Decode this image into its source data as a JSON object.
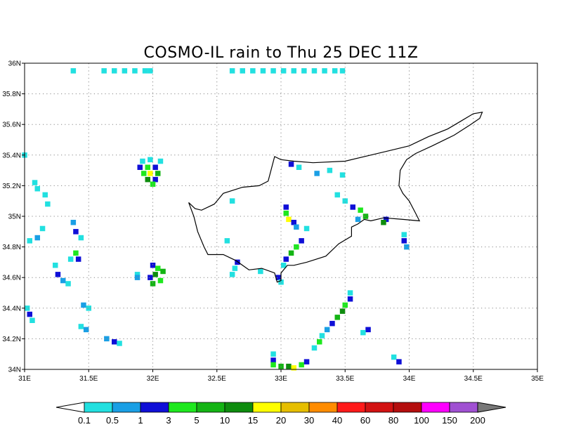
{
  "title": "COSMO-IL rain to Thu 25 DEC 11Z",
  "map": {
    "lon_range": [
      31,
      35
    ],
    "lat_range": [
      34,
      36
    ],
    "x_ticks": [
      "31E",
      "31.5E",
      "32E",
      "32.5E",
      "33E",
      "33.5E",
      "34E",
      "34.5E",
      "35E"
    ],
    "y_ticks": [
      "34N",
      "34.2N",
      "34.4N",
      "34.6N",
      "34.8N",
      "35N",
      "35.2N",
      "35.4N",
      "35.6N",
      "35.8N",
      "36N"
    ],
    "grid": "dotted",
    "coastline": "Cyprus",
    "coastline_lonlat": [
      [
        32.28,
        35.09
      ],
      [
        32.33,
        35.05
      ],
      [
        32.38,
        35.04
      ],
      [
        32.48,
        35.08
      ],
      [
        32.55,
        35.15
      ],
      [
        32.7,
        35.19
      ],
      [
        32.83,
        35.2
      ],
      [
        32.9,
        35.23
      ],
      [
        32.95,
        35.39
      ],
      [
        33.0,
        35.37
      ],
      [
        33.1,
        35.36
      ],
      [
        33.25,
        35.35
      ],
      [
        33.5,
        35.36
      ],
      [
        33.7,
        35.4
      ],
      [
        33.85,
        35.43
      ],
      [
        34.0,
        35.46
      ],
      [
        34.15,
        35.52
      ],
      [
        34.3,
        35.57
      ],
      [
        34.4,
        35.62
      ],
      [
        34.5,
        35.67
      ],
      [
        34.57,
        35.68
      ],
      [
        34.55,
        35.64
      ],
      [
        34.48,
        35.6
      ],
      [
        34.35,
        35.53
      ],
      [
        34.18,
        35.46
      ],
      [
        34.05,
        35.41
      ],
      [
        33.98,
        35.37
      ],
      [
        33.93,
        35.3
      ],
      [
        33.92,
        35.2
      ],
      [
        33.95,
        35.15
      ],
      [
        34.0,
        35.1
      ],
      [
        34.05,
        35.02
      ],
      [
        34.08,
        34.97
      ],
      [
        33.95,
        34.98
      ],
      [
        33.8,
        34.99
      ],
      [
        33.7,
        34.97
      ],
      [
        33.65,
        34.98
      ],
      [
        33.6,
        34.95
      ],
      [
        33.55,
        34.93
      ],
      [
        33.55,
        34.87
      ],
      [
        33.45,
        34.82
      ],
      [
        33.35,
        34.74
      ],
      [
        33.2,
        34.7
      ],
      [
        33.1,
        34.68
      ],
      [
        33.05,
        34.68
      ],
      [
        33.0,
        34.63
      ],
      [
        33.0,
        34.58
      ],
      [
        32.97,
        34.57
      ],
      [
        32.95,
        34.63
      ],
      [
        32.85,
        34.66
      ],
      [
        32.75,
        34.65
      ],
      [
        32.65,
        34.71
      ],
      [
        32.55,
        34.75
      ],
      [
        32.43,
        34.75
      ],
      [
        32.4,
        34.8
      ],
      [
        32.35,
        34.9
      ],
      [
        32.32,
        35.0
      ],
      [
        32.28,
        35.09
      ]
    ]
  },
  "colorbar": {
    "labels": [
      "0.1",
      "0.5",
      "1",
      "3",
      "5",
      "10",
      "15",
      "20",
      "30",
      "40",
      "60",
      "80",
      "100",
      "150",
      "200"
    ],
    "colors": [
      "#22e0e0",
      "#1a9fe5",
      "#0f0fd7",
      "#1ee81e",
      "#14b414",
      "#0e8c0e",
      "#ffff00",
      "#e6be00",
      "#ff8c00",
      "#ff1a1a",
      "#d21212",
      "#b40e0e",
      "#ff00ff",
      "#a050d2"
    ],
    "under_color": "#ffffff",
    "over_color": "#787878"
  },
  "rain_cells": [
    {
      "lon": 31.38,
      "lat": 35.95,
      "level": 0
    },
    {
      "lon": 31.62,
      "lat": 35.95,
      "level": 0
    },
    {
      "lon": 31.7,
      "lat": 35.95,
      "level": 0
    },
    {
      "lon": 31.78,
      "lat": 35.95,
      "level": 0
    },
    {
      "lon": 31.86,
      "lat": 35.95,
      "level": 0
    },
    {
      "lon": 31.94,
      "lat": 35.95,
      "level": 0
    },
    {
      "lon": 31.98,
      "lat": 35.95,
      "level": 0
    },
    {
      "lon": 32.62,
      "lat": 35.95,
      "level": 0
    },
    {
      "lon": 32.7,
      "lat": 35.95,
      "level": 0
    },
    {
      "lon": 32.78,
      "lat": 35.95,
      "level": 0
    },
    {
      "lon": 32.86,
      "lat": 35.95,
      "level": 0
    },
    {
      "lon": 32.94,
      "lat": 35.95,
      "level": 0
    },
    {
      "lon": 33.02,
      "lat": 35.95,
      "level": 0
    },
    {
      "lon": 33.1,
      "lat": 35.95,
      "level": 0
    },
    {
      "lon": 33.18,
      "lat": 35.95,
      "level": 0
    },
    {
      "lon": 33.26,
      "lat": 35.95,
      "level": 0
    },
    {
      "lon": 33.34,
      "lat": 35.95,
      "level": 0
    },
    {
      "lon": 33.42,
      "lat": 35.95,
      "level": 0
    },
    {
      "lon": 33.48,
      "lat": 35.95,
      "level": 0
    },
    {
      "lon": 31.92,
      "lat": 35.36,
      "level": 0
    },
    {
      "lon": 31.98,
      "lat": 35.37,
      "level": 0
    },
    {
      "lon": 32.06,
      "lat": 35.36,
      "level": 0
    },
    {
      "lon": 31.9,
      "lat": 35.32,
      "level": 2
    },
    {
      "lon": 31.96,
      "lat": 35.32,
      "level": 3
    },
    {
      "lon": 32.02,
      "lat": 35.32,
      "level": 2
    },
    {
      "lon": 31.93,
      "lat": 35.28,
      "level": 3
    },
    {
      "lon": 31.98,
      "lat": 35.28,
      "level": 6
    },
    {
      "lon": 32.04,
      "lat": 35.28,
      "level": 4
    },
    {
      "lon": 31.96,
      "lat": 35.24,
      "level": 5
    },
    {
      "lon": 32.02,
      "lat": 35.24,
      "level": 2
    },
    {
      "lon": 32.0,
      "lat": 35.21,
      "level": 3
    },
    {
      "lon": 31.08,
      "lat": 35.22,
      "level": 0
    },
    {
      "lon": 31.1,
      "lat": 35.18,
      "level": 0
    },
    {
      "lon": 31.16,
      "lat": 35.14,
      "level": 0
    },
    {
      "lon": 31.18,
      "lat": 35.08,
      "level": 0
    },
    {
      "lon": 31.0,
      "lat": 35.4,
      "level": 0
    },
    {
      "lon": 31.04,
      "lat": 34.84,
      "level": 0
    },
    {
      "lon": 31.1,
      "lat": 34.86,
      "level": 1
    },
    {
      "lon": 31.14,
      "lat": 34.92,
      "level": 0
    },
    {
      "lon": 31.38,
      "lat": 34.96,
      "level": 1
    },
    {
      "lon": 31.4,
      "lat": 34.9,
      "level": 2
    },
    {
      "lon": 31.44,
      "lat": 34.86,
      "level": 0
    },
    {
      "lon": 31.4,
      "lat": 34.76,
      "level": 3
    },
    {
      "lon": 31.42,
      "lat": 34.72,
      "level": 2
    },
    {
      "lon": 31.36,
      "lat": 34.72,
      "level": 0
    },
    {
      "lon": 31.24,
      "lat": 34.68,
      "level": 0
    },
    {
      "lon": 31.26,
      "lat": 34.62,
      "level": 2
    },
    {
      "lon": 31.3,
      "lat": 34.58,
      "level": 1
    },
    {
      "lon": 31.34,
      "lat": 34.56,
      "level": 0
    },
    {
      "lon": 31.88,
      "lat": 34.62,
      "level": 0
    },
    {
      "lon": 31.88,
      "lat": 34.6,
      "level": 1
    },
    {
      "lon": 32.0,
      "lat": 34.68,
      "level": 2
    },
    {
      "lon": 32.04,
      "lat": 34.66,
      "level": 3
    },
    {
      "lon": 32.08,
      "lat": 34.64,
      "level": 4
    },
    {
      "lon": 32.02,
      "lat": 34.62,
      "level": 5
    },
    {
      "lon": 31.98,
      "lat": 34.6,
      "level": 2
    },
    {
      "lon": 32.06,
      "lat": 34.58,
      "level": 3
    },
    {
      "lon": 32.0,
      "lat": 34.56,
      "level": 4
    },
    {
      "lon": 31.02,
      "lat": 34.4,
      "level": 0
    },
    {
      "lon": 31.04,
      "lat": 34.36,
      "level": 2
    },
    {
      "lon": 31.06,
      "lat": 34.32,
      "level": 0
    },
    {
      "lon": 31.46,
      "lat": 34.42,
      "level": 1
    },
    {
      "lon": 31.5,
      "lat": 34.4,
      "level": 0
    },
    {
      "lon": 31.44,
      "lat": 34.28,
      "level": 0
    },
    {
      "lon": 31.48,
      "lat": 34.26,
      "level": 1
    },
    {
      "lon": 31.64,
      "lat": 34.2,
      "level": 1
    },
    {
      "lon": 31.7,
      "lat": 34.18,
      "level": 2
    },
    {
      "lon": 31.74,
      "lat": 34.17,
      "level": 0
    },
    {
      "lon": 32.62,
      "lat": 35.1,
      "level": 0
    },
    {
      "lon": 32.58,
      "lat": 34.84,
      "level": 0
    },
    {
      "lon": 33.08,
      "lat": 35.34,
      "level": 2
    },
    {
      "lon": 33.14,
      "lat": 35.32,
      "level": 0
    },
    {
      "lon": 33.28,
      "lat": 35.28,
      "level": 1
    },
    {
      "lon": 33.38,
      "lat": 35.3,
      "level": 0
    },
    {
      "lon": 33.48,
      "lat": 35.27,
      "level": 0
    },
    {
      "lon": 33.04,
      "lat": 35.06,
      "level": 2
    },
    {
      "lon": 33.04,
      "lat": 35.02,
      "level": 3
    },
    {
      "lon": 33.06,
      "lat": 34.98,
      "level": 6
    },
    {
      "lon": 33.1,
      "lat": 34.96,
      "level": 2
    },
    {
      "lon": 33.12,
      "lat": 34.93,
      "level": 1
    },
    {
      "lon": 33.2,
      "lat": 34.92,
      "level": 0
    },
    {
      "lon": 33.16,
      "lat": 34.84,
      "level": 2
    },
    {
      "lon": 33.12,
      "lat": 34.8,
      "level": 3
    },
    {
      "lon": 33.08,
      "lat": 34.76,
      "level": 4
    },
    {
      "lon": 33.04,
      "lat": 34.72,
      "level": 2
    },
    {
      "lon": 33.02,
      "lat": 34.68,
      "level": 0
    },
    {
      "lon": 32.66,
      "lat": 34.7,
      "level": 2
    },
    {
      "lon": 32.64,
      "lat": 34.66,
      "level": 0
    },
    {
      "lon": 32.62,
      "lat": 34.62,
      "level": 0
    },
    {
      "lon": 32.84,
      "lat": 34.64,
      "level": 0
    },
    {
      "lon": 32.98,
      "lat": 34.6,
      "level": 2
    },
    {
      "lon": 33.0,
      "lat": 34.57,
      "level": 0
    },
    {
      "lon": 33.56,
      "lat": 35.06,
      "level": 2
    },
    {
      "lon": 33.62,
      "lat": 35.04,
      "level": 3
    },
    {
      "lon": 33.66,
      "lat": 35.0,
      "level": 4
    },
    {
      "lon": 33.6,
      "lat": 34.98,
      "level": 1
    },
    {
      "lon": 33.82,
      "lat": 34.98,
      "level": 2
    },
    {
      "lon": 33.8,
      "lat": 34.96,
      "level": 5
    },
    {
      "lon": 33.44,
      "lat": 35.14,
      "level": 0
    },
    {
      "lon": 33.5,
      "lat": 35.1,
      "level": 0
    },
    {
      "lon": 33.96,
      "lat": 34.88,
      "level": 0
    },
    {
      "lon": 33.96,
      "lat": 34.84,
      "level": 2
    },
    {
      "lon": 33.98,
      "lat": 34.8,
      "level": 1
    },
    {
      "lon": 33.54,
      "lat": 34.5,
      "level": 0
    },
    {
      "lon": 33.54,
      "lat": 34.46,
      "level": 2
    },
    {
      "lon": 33.5,
      "lat": 34.42,
      "level": 3
    },
    {
      "lon": 33.48,
      "lat": 34.38,
      "level": 5
    },
    {
      "lon": 33.44,
      "lat": 34.34,
      "level": 4
    },
    {
      "lon": 33.4,
      "lat": 34.3,
      "level": 2
    },
    {
      "lon": 33.36,
      "lat": 34.26,
      "level": 1
    },
    {
      "lon": 33.32,
      "lat": 34.22,
      "level": 0
    },
    {
      "lon": 33.3,
      "lat": 34.18,
      "level": 3
    },
    {
      "lon": 33.26,
      "lat": 34.14,
      "level": 0
    },
    {
      "lon": 33.68,
      "lat": 34.26,
      "level": 2
    },
    {
      "lon": 33.64,
      "lat": 34.24,
      "level": 0
    },
    {
      "lon": 32.94,
      "lat": 34.1,
      "level": 0
    },
    {
      "lon": 32.94,
      "lat": 34.06,
      "level": 2
    },
    {
      "lon": 32.94,
      "lat": 34.03,
      "level": 3
    },
    {
      "lon": 33.0,
      "lat": 34.02,
      "level": 4
    },
    {
      "lon": 33.06,
      "lat": 34.02,
      "level": 5
    },
    {
      "lon": 33.1,
      "lat": 34.01,
      "level": 6
    },
    {
      "lon": 33.16,
      "lat": 34.03,
      "level": 3
    },
    {
      "lon": 33.2,
      "lat": 34.05,
      "level": 2
    },
    {
      "lon": 33.88,
      "lat": 34.08,
      "level": 0
    },
    {
      "lon": 33.92,
      "lat": 34.05,
      "level": 2
    }
  ]
}
